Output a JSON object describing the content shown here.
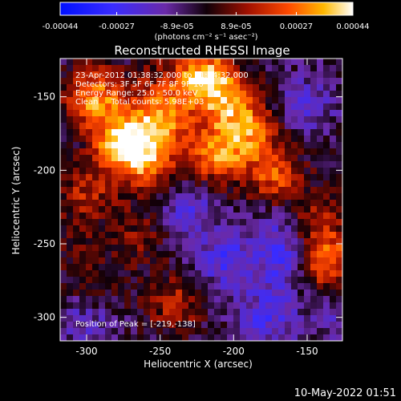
{
  "chart_data": {
    "type": "heatmap",
    "title": "Reconstructed RHESSI Image",
    "xlabel": "Heliocentric X (arcsec)",
    "ylabel": "Heliocentric Y (arcsec)",
    "xlim": [
      -318,
      -126
    ],
    "ylim": [
      -316,
      -124
    ],
    "x_ticks": [
      -300,
      -250,
      -200,
      -150
    ],
    "y_ticks": [
      -300,
      -250,
      -200,
      -150
    ],
    "colorbar": {
      "range": [
        -0.00044,
        0.00044
      ],
      "ticks": [
        -0.00044,
        -0.00027,
        -8.9e-05,
        8.9e-05,
        0.00027,
        0.00044
      ],
      "tick_labels": [
        "-0.00044",
        "-0.00027",
        "-8.9e-05",
        "8.9e-05",
        "0.00027",
        "0.00044"
      ],
      "unit_label": "(photons cm⁻² s⁻¹ asec⁻²)"
    },
    "annotations": [
      "23-Apr-2012 01:38:32.000 to 01:44:32.000",
      "Detectors: 3F 5F 6F 7F 8F 9F 10",
      "Energy Range: 25.0 - 50.0 keV",
      "Clean     Total counts: 5.98E+03"
    ],
    "peak_label": "Position of Peak = [-219,-138]",
    "peak": [
      -219,
      -138
    ],
    "hotspots": [
      {
        "x": -275,
        "y": -180,
        "value": 0.00044
      },
      {
        "x": -295,
        "y": -150,
        "value": 0.00034
      },
      {
        "x": -258,
        "y": -195,
        "value": 0.00028
      },
      {
        "x": -248,
        "y": -165,
        "value": 0.0003
      },
      {
        "x": -219,
        "y": -138,
        "value": 0.00044
      },
      {
        "x": -200,
        "y": -158,
        "value": 0.00026
      },
      {
        "x": -212,
        "y": -190,
        "value": 0.00032
      },
      {
        "x": -172,
        "y": -205,
        "value": 0.00026
      },
      {
        "x": -188,
        "y": -176,
        "value": 0.00022
      },
      {
        "x": -138,
        "y": -262,
        "value": 0.00034
      },
      {
        "x": -145,
        "y": -235,
        "value": 0.00016
      },
      {
        "x": -300,
        "y": -215,
        "value": 0.00018
      },
      {
        "x": -240,
        "y": -290,
        "value": 0.00018
      },
      {
        "x": -295,
        "y": -280,
        "value": 0.00012
      },
      {
        "x": -265,
        "y": -245,
        "value": 0.00012
      },
      {
        "x": -205,
        "y": -262,
        "value": -0.0002
      },
      {
        "x": -162,
        "y": -262,
        "value": -0.00022
      },
      {
        "x": -230,
        "y": -225,
        "value": -0.00016
      },
      {
        "x": -178,
        "y": -300,
        "value": -0.00018
      },
      {
        "x": -300,
        "y": -300,
        "value": -0.00014
      },
      {
        "x": -150,
        "y": -155,
        "value": -0.00014
      },
      {
        "x": -170,
        "y": -235,
        "value": -0.00012
      },
      {
        "x": -250,
        "y": -140,
        "value": 0.0001
      },
      {
        "x": -310,
        "y": -250,
        "value": 8e-05
      },
      {
        "x": -130,
        "y": -300,
        "value": -0.0001
      }
    ]
  },
  "footer": {
    "timestamp": "10-May-2022 01:51"
  }
}
